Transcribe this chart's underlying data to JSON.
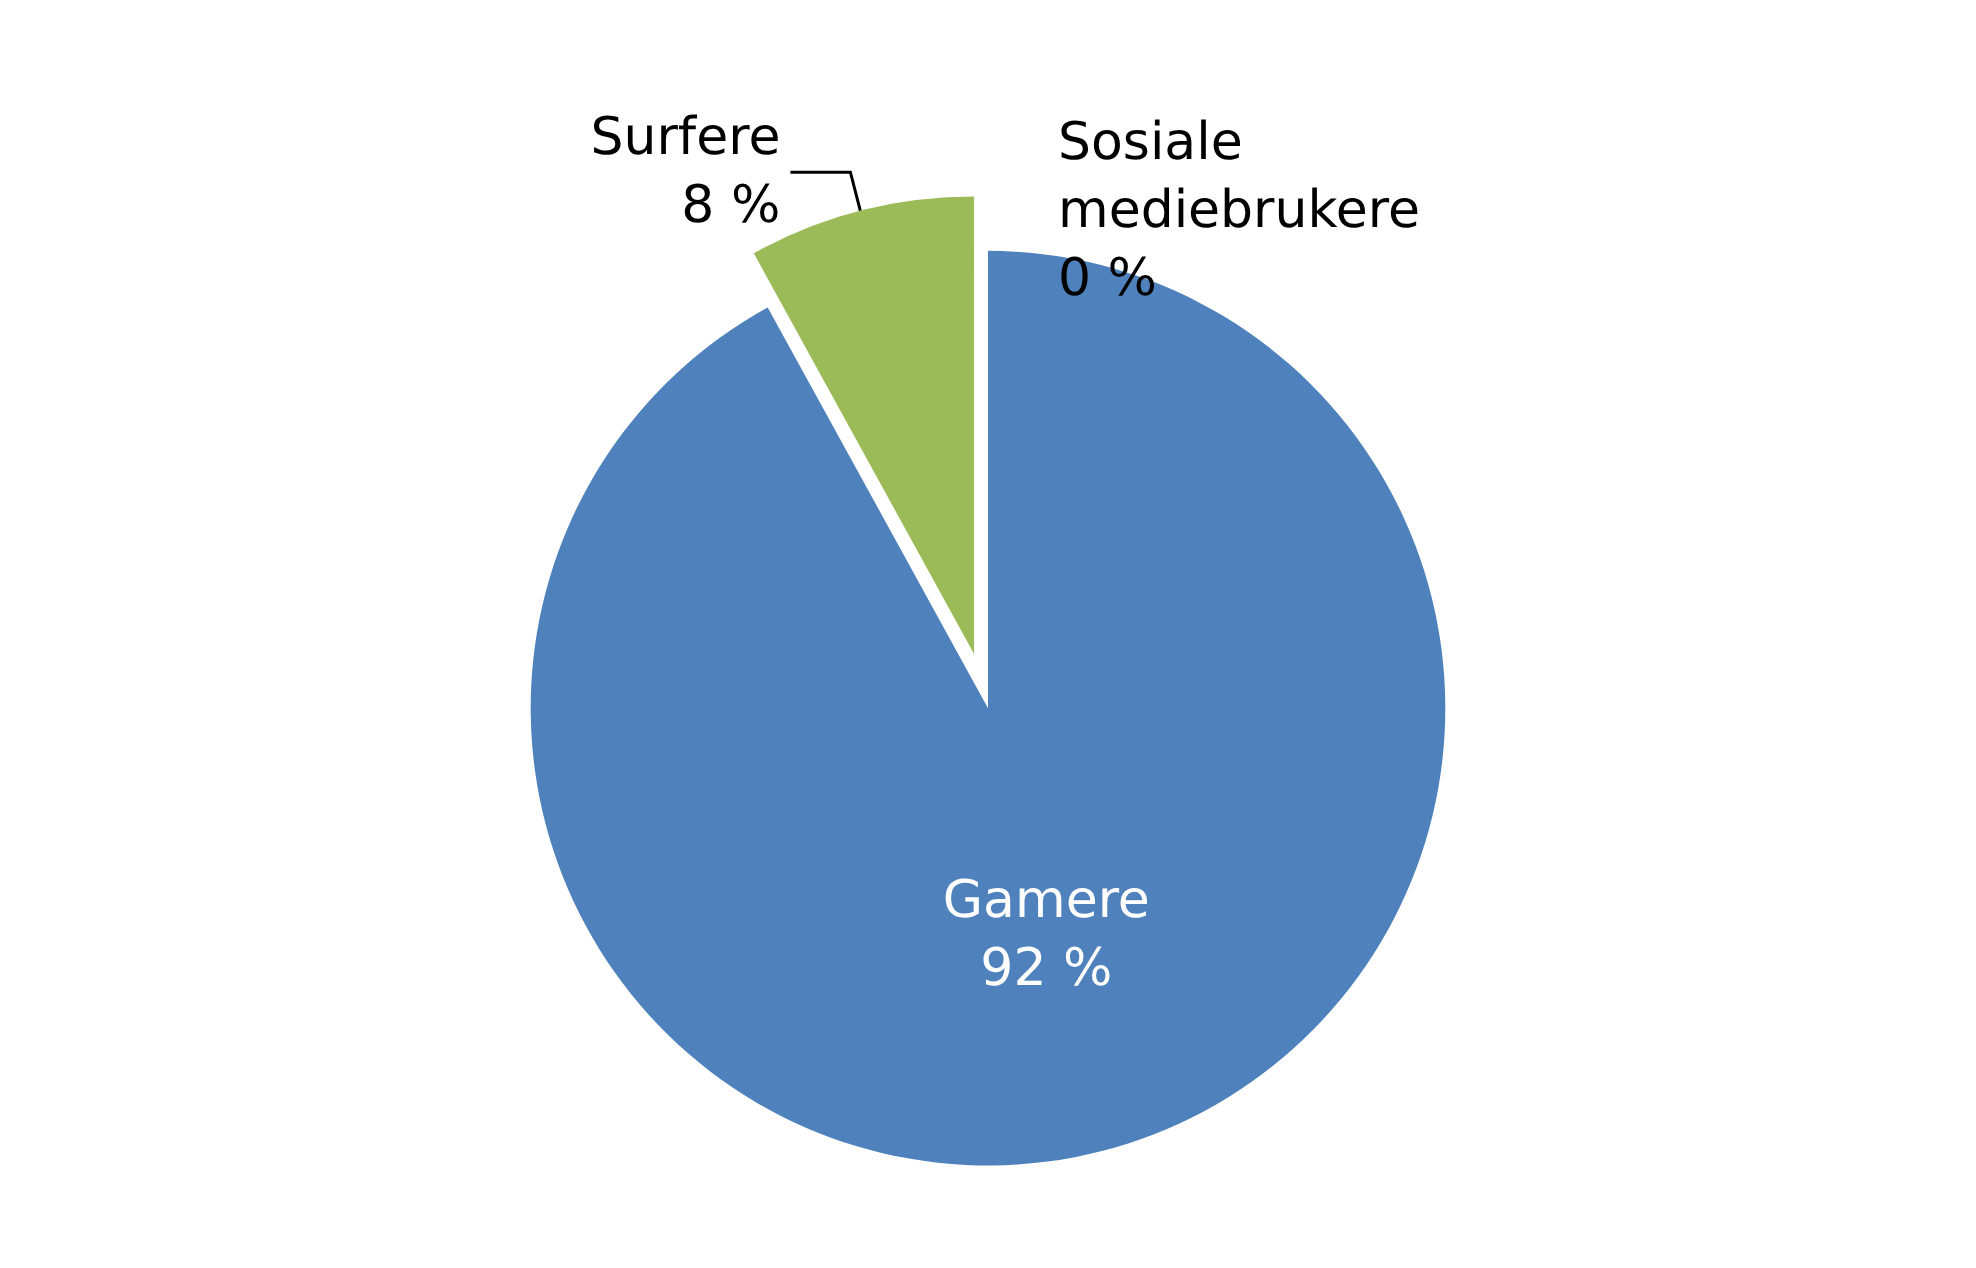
{
  "chart_data": {
    "type": "pie",
    "categories": [
      "Gamere",
      "Surfere",
      "Sosiale mediebrukere"
    ],
    "values": [
      92,
      8,
      0
    ],
    "colors": [
      "#4f81bd",
      "#9bbb59",
      "#c0504d"
    ],
    "value_labels": [
      "92 %",
      "8 %",
      "0 %"
    ],
    "legend": false
  }
}
